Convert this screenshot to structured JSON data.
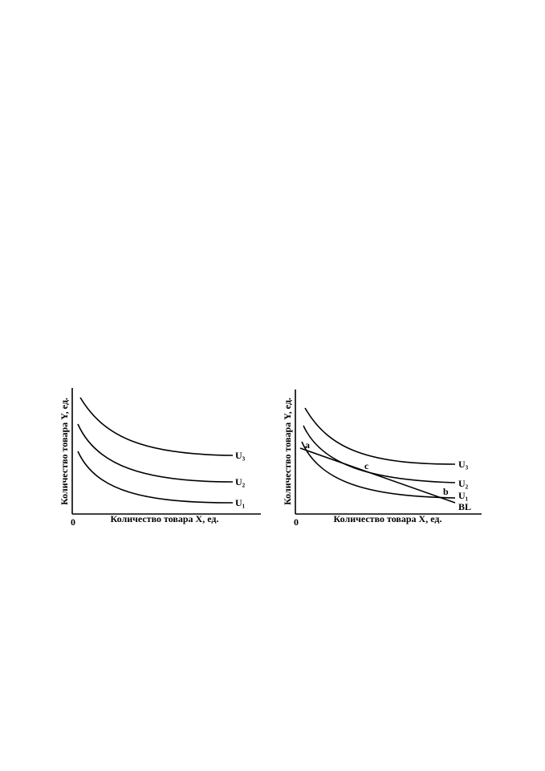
{
  "figures": [
    {
      "y_axis_label": "Количество товара Y, ед.",
      "x_axis_label": "Количество товара X, ед.",
      "origin": "0",
      "curves": [
        "U₃",
        "U₂",
        "U₁"
      ]
    },
    {
      "y_axis_label": "Количество товара Y, ед.",
      "x_axis_label": "Количество товара X, ед.",
      "origin": "0",
      "curves": [
        "U₃",
        "U₂",
        "U₁"
      ],
      "budget_line": "BL",
      "points": [
        "a",
        "c",
        "b"
      ]
    }
  ]
}
